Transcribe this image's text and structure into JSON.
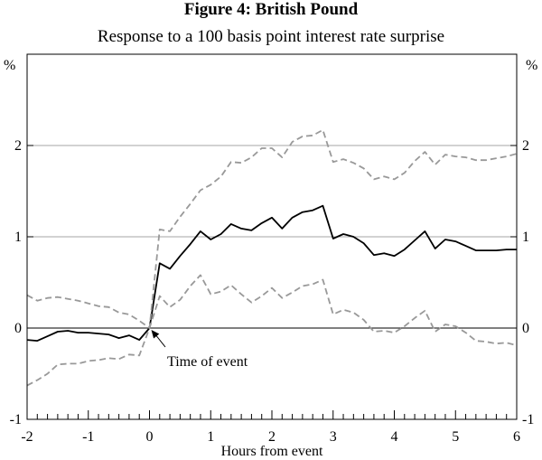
{
  "title": "Figure 4: British Pound",
  "subtitle": "Response to a 100 basis point interest rate surprise",
  "chart_data": {
    "type": "line",
    "title": "Figure 4: British Pound",
    "subtitle": "Response to a 100 basis point interest rate surprise",
    "xlabel": "Hours from event",
    "ylabel_left": "%",
    "ylabel_right": "%",
    "xlim": [
      -2,
      6
    ],
    "ylim": [
      -1,
      3
    ],
    "x_ticks": [
      -2,
      -1,
      0,
      1,
      2,
      3,
      4,
      5,
      6
    ],
    "x_tick_labels": [
      "-2",
      "-1",
      "0",
      "1",
      "2",
      "3",
      "4",
      "5",
      "6"
    ],
    "y_ticks": [
      -1,
      0,
      1,
      2
    ],
    "y_tick_labels": [
      "-1",
      "0",
      "1",
      "2"
    ],
    "gridlines_y": [
      1,
      2
    ],
    "zero_line": true,
    "annotation": {
      "text": "Time of event",
      "x": 0,
      "y": 0
    },
    "series": [
      {
        "role": "estimate",
        "color": "#000000",
        "style": "solid",
        "x": [
          -2,
          -1.833,
          -1.667,
          -1.5,
          -1.333,
          -1.167,
          -1,
          -0.833,
          -0.667,
          -0.5,
          -0.333,
          -0.167,
          0,
          0.167,
          0.333,
          0.5,
          0.667,
          0.833,
          1,
          1.167,
          1.333,
          1.5,
          1.667,
          1.833,
          2,
          2.167,
          2.333,
          2.5,
          2.667,
          2.833,
          3,
          3.167,
          3.333,
          3.5,
          3.667,
          3.833,
          4,
          4.167,
          4.333,
          4.5,
          4.667,
          4.833,
          5,
          5.167,
          5.333,
          5.5,
          5.667,
          5.833,
          6
        ],
        "values": [
          -0.13,
          -0.14,
          -0.09,
          -0.04,
          -0.03,
          -0.05,
          -0.05,
          -0.06,
          -0.07,
          -0.11,
          -0.08,
          -0.13,
          0.0,
          0.71,
          0.65,
          0.79,
          0.92,
          1.06,
          0.97,
          1.03,
          1.14,
          1.09,
          1.07,
          1.15,
          1.21,
          1.09,
          1.21,
          1.27,
          1.29,
          1.34,
          0.98,
          1.03,
          1.0,
          0.93,
          0.8,
          0.82,
          0.79,
          0.86,
          0.96,
          1.06,
          0.87,
          0.97,
          0.95,
          0.9,
          0.85,
          0.85,
          0.85,
          0.86,
          0.86
        ]
      },
      {
        "role": "upper-band",
        "color": "#999999",
        "style": "dashed",
        "x": [
          -2,
          -1.833,
          -1.667,
          -1.5,
          -1.333,
          -1.167,
          -1,
          -0.833,
          -0.667,
          -0.5,
          -0.333,
          -0.167,
          0,
          0.167,
          0.333,
          0.5,
          0.667,
          0.833,
          1,
          1.167,
          1.333,
          1.5,
          1.667,
          1.833,
          2,
          2.167,
          2.333,
          2.5,
          2.667,
          2.833,
          3,
          3.167,
          3.333,
          3.5,
          3.667,
          3.833,
          4,
          4.167,
          4.333,
          4.5,
          4.667,
          4.833,
          5,
          5.167,
          5.333,
          5.5,
          5.667,
          5.833,
          6
        ],
        "values": [
          0.36,
          0.3,
          0.33,
          0.34,
          0.32,
          0.3,
          0.27,
          0.24,
          0.23,
          0.17,
          0.15,
          0.08,
          0.0,
          1.08,
          1.06,
          1.22,
          1.36,
          1.51,
          1.57,
          1.66,
          1.82,
          1.81,
          1.87,
          1.97,
          1.97,
          1.87,
          2.04,
          2.1,
          2.11,
          2.17,
          1.82,
          1.85,
          1.81,
          1.75,
          1.63,
          1.66,
          1.63,
          1.7,
          1.83,
          1.93,
          1.79,
          1.9,
          1.88,
          1.87,
          1.84,
          1.84,
          1.86,
          1.88,
          1.91
        ]
      },
      {
        "role": "lower-band",
        "color": "#999999",
        "style": "dashed",
        "x": [
          -2,
          -1.833,
          -1.667,
          -1.5,
          -1.333,
          -1.167,
          -1,
          -0.833,
          -0.667,
          -0.5,
          -0.333,
          -0.167,
          0,
          0.167,
          0.333,
          0.5,
          0.667,
          0.833,
          1,
          1.167,
          1.333,
          1.5,
          1.667,
          1.833,
          2,
          2.167,
          2.333,
          2.5,
          2.667,
          2.833,
          3,
          3.167,
          3.333,
          3.5,
          3.667,
          3.833,
          4,
          4.167,
          4.333,
          4.5,
          4.667,
          4.833,
          5,
          5.167,
          5.333,
          5.5,
          5.667,
          5.833,
          6
        ],
        "values": [
          -0.63,
          -0.57,
          -0.5,
          -0.4,
          -0.39,
          -0.39,
          -0.36,
          -0.35,
          -0.33,
          -0.34,
          -0.29,
          -0.3,
          0.0,
          0.35,
          0.23,
          0.31,
          0.46,
          0.58,
          0.37,
          0.4,
          0.47,
          0.37,
          0.28,
          0.35,
          0.44,
          0.33,
          0.39,
          0.46,
          0.48,
          0.53,
          0.15,
          0.2,
          0.17,
          0.09,
          -0.04,
          -0.03,
          -0.05,
          0.02,
          0.11,
          0.19,
          -0.04,
          0.04,
          0.02,
          -0.05,
          -0.14,
          -0.15,
          -0.17,
          -0.16,
          -0.19
        ]
      }
    ]
  }
}
